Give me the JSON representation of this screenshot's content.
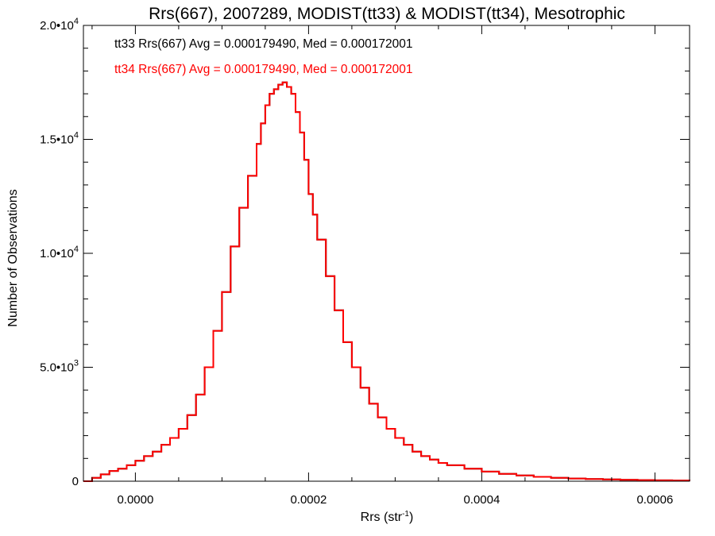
{
  "chart_data": {
    "type": "line",
    "step_histogram": true,
    "title": "Rrs(667), 2007289, MODIST(tt33) & MODIST(tt34), Mesotrophic",
    "xlabel": "Rrs (str",
    "xlabel_superscript": "-1",
    "xlabel_suffix": ")",
    "ylabel": "Number of Observations",
    "xlim": [
      -6e-05,
      0.00064
    ],
    "ylim": [
      0,
      20000
    ],
    "grid": false,
    "x_ticks": [
      {
        "value": 0.0,
        "label": "0.0000"
      },
      {
        "value": 0.0002,
        "label": "0.0002"
      },
      {
        "value": 0.0004,
        "label": "0.0004"
      },
      {
        "value": 0.0006,
        "label": "0.0006"
      }
    ],
    "y_ticks": [
      {
        "value": 0,
        "mantissa": "0",
        "exp": ""
      },
      {
        "value": 5000,
        "mantissa": "5.0•10",
        "exp": "3"
      },
      {
        "value": 10000,
        "mantissa": "1.0•10",
        "exp": "4"
      },
      {
        "value": 15000,
        "mantissa": "1.5•10",
        "exp": "4"
      },
      {
        "value": 20000,
        "mantissa": "2.0•10",
        "exp": "4"
      }
    ],
    "stats": [
      {
        "text": "tt33 Rrs(667) Avg = 0.000179490, Med = 0.000172001",
        "color": "#000000"
      },
      {
        "text": "tt34 Rrs(667) Avg = 0.000179490, Med = 0.000172001",
        "color": "#ff0000"
      }
    ],
    "series": [
      {
        "color": "#000000",
        "x": [
          -6e-05,
          -5e-05,
          -4e-05,
          -3e-05,
          -2e-05,
          -1e-05,
          0.0,
          1e-05,
          2e-05,
          3e-05,
          4e-05,
          5e-05,
          6e-05,
          7e-05,
          8e-05,
          9e-05,
          0.0001,
          0.00011,
          0.00012,
          0.00013,
          0.00014,
          0.000145,
          0.00015,
          0.000155,
          0.00016,
          0.000165,
          0.00017,
          0.000175,
          0.00018,
          0.000185,
          0.00019,
          0.000195,
          0.0002,
          0.000205,
          0.00021,
          0.00022,
          0.00023,
          0.00024,
          0.00025,
          0.00026,
          0.00027,
          0.00028,
          0.00029,
          0.0003,
          0.00031,
          0.00032,
          0.00033,
          0.00034,
          0.00035,
          0.00036,
          0.00038,
          0.0004,
          0.00042,
          0.00044,
          0.00046,
          0.00048,
          0.0005,
          0.00052,
          0.00054,
          0.00056,
          0.00058,
          0.0006,
          0.00062,
          0.00064
        ],
        "values": [
          0,
          150,
          300,
          450,
          550,
          700,
          900,
          1100,
          1300,
          1600,
          1900,
          2300,
          2900,
          3800,
          5000,
          6600,
          8300,
          10300,
          12000,
          13400,
          14800,
          15700,
          16500,
          17000,
          17200,
          17400,
          17500,
          17300,
          17000,
          16200,
          15300,
          14100,
          12600,
          11700,
          10600,
          9000,
          7500,
          6100,
          5000,
          4100,
          3400,
          2800,
          2300,
          1900,
          1600,
          1300,
          1100,
          950,
          800,
          700,
          550,
          420,
          320,
          250,
          190,
          150,
          120,
          95,
          75,
          60,
          50,
          40,
          30,
          20
        ]
      },
      {
        "color": "#ff0000",
        "x": [
          -6e-05,
          -5e-05,
          -4e-05,
          -3e-05,
          -2e-05,
          -1e-05,
          0.0,
          1e-05,
          2e-05,
          3e-05,
          4e-05,
          5e-05,
          6e-05,
          7e-05,
          8e-05,
          9e-05,
          0.0001,
          0.00011,
          0.00012,
          0.00013,
          0.00014,
          0.000145,
          0.00015,
          0.000155,
          0.00016,
          0.000165,
          0.00017,
          0.000175,
          0.00018,
          0.000185,
          0.00019,
          0.000195,
          0.0002,
          0.000205,
          0.00021,
          0.00022,
          0.00023,
          0.00024,
          0.00025,
          0.00026,
          0.00027,
          0.00028,
          0.00029,
          0.0003,
          0.00031,
          0.00032,
          0.00033,
          0.00034,
          0.00035,
          0.00036,
          0.00038,
          0.0004,
          0.00042,
          0.00044,
          0.00046,
          0.00048,
          0.0005,
          0.00052,
          0.00054,
          0.00056,
          0.00058,
          0.0006,
          0.00062,
          0.00064
        ],
        "values": [
          0,
          150,
          300,
          450,
          550,
          700,
          900,
          1100,
          1300,
          1600,
          1900,
          2300,
          2900,
          3800,
          5000,
          6600,
          8300,
          10300,
          12000,
          13400,
          14800,
          15700,
          16500,
          17000,
          17200,
          17400,
          17500,
          17300,
          17000,
          16200,
          15300,
          14100,
          12600,
          11700,
          10600,
          9000,
          7500,
          6100,
          5000,
          4100,
          3400,
          2800,
          2300,
          1900,
          1600,
          1300,
          1100,
          950,
          800,
          700,
          550,
          420,
          320,
          250,
          190,
          150,
          120,
          95,
          75,
          60,
          50,
          40,
          30,
          20
        ]
      }
    ]
  }
}
